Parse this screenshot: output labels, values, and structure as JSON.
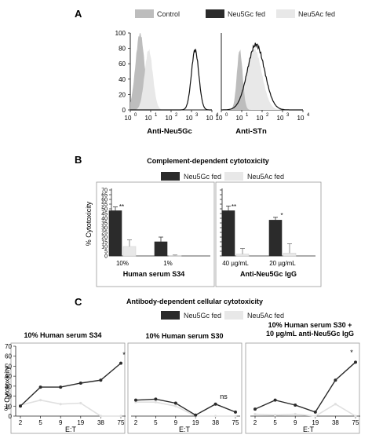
{
  "colors": {
    "dark": "#2b2b2b",
    "light": "#e8e8e8",
    "grey": "#bdbdbd",
    "axis": "#222222"
  },
  "panel_a": {
    "letter": "A",
    "legend": [
      "Control",
      "Neu5Gc fed",
      "Neu5Ac fed"
    ],
    "ylabel_ticks": [
      "0",
      "20",
      "40",
      "60",
      "80",
      "100"
    ],
    "x_ticks": [
      "10",
      "10",
      "10",
      "10",
      "10"
    ],
    "x_exps": [
      "0",
      "1",
      "2",
      "3",
      "4"
    ],
    "left_xlabel": "Anti-Neu5Gc",
    "right_xlabel": "Anti-STn"
  },
  "panel_b": {
    "letter": "B",
    "title": "Complement-dependent cytotoxicity",
    "legend": [
      "Neu5Gc fed",
      "Neu5Ac fed"
    ],
    "ylabel": "% Cytotoxicity",
    "left_group_label": "Human serum S34",
    "right_group_label": "Anti-Neu5Gc IgG",
    "stars_left": "**",
    "stars_right_1": "**",
    "stars_right_2": "*"
  },
  "panel_c": {
    "letter": "C",
    "title": "Antibody-dependent cellular cytotoxicity",
    "legend": [
      "Neu5Gc fed",
      "Neu5Ac fed"
    ],
    "ylabel": "% Cytotoxicity",
    "xlabel": "E:T",
    "sub1_title": "10% Human serum S34",
    "sub2_title": "10% Human serum S30",
    "sub3_title_1": "10% Human serum S30 +",
    "sub3_title_2": "10 µg/mL anti-Neu5Gc IgG",
    "star1": "*",
    "ns2": "ns",
    "star3": "*"
  },
  "chart_data": [
    {
      "type": "area",
      "panel": "A-left",
      "xlabel": "Anti-Neu5Gc",
      "x_scale": "log",
      "xlim": [
        1,
        10000
      ],
      "ylim": [
        0,
        100
      ],
      "series": [
        {
          "name": "Control",
          "peak_x": 3,
          "peak_y": 100
        },
        {
          "name": "Neu5Ac fed",
          "peak_x": 8,
          "peak_y": 78
        },
        {
          "name": "Neu5Gc fed",
          "peak_x": 1500,
          "peak_y": 78
        }
      ]
    },
    {
      "type": "area",
      "panel": "A-right",
      "xlabel": "Anti-STn",
      "x_scale": "log",
      "xlim": [
        1,
        10000
      ],
      "ylim": [
        0,
        100
      ],
      "series": [
        {
          "name": "Control",
          "peak_x": 8,
          "peak_y": 78
        },
        {
          "name": "Neu5Ac fed",
          "peak_x": 40,
          "peak_y": 80
        },
        {
          "name": "Neu5Gc fed",
          "peak_x": 50,
          "peak_y": 85
        }
      ]
    },
    {
      "type": "bar",
      "panel": "B",
      "title": "Complement-dependent cytotoxicity",
      "ylabel": "% Cytotoxicity",
      "ylim": [
        0,
        70
      ],
      "yticks": [
        0,
        5,
        10,
        15,
        20,
        25,
        30,
        35,
        40,
        45,
        50,
        55,
        60,
        65,
        70
      ],
      "groups": [
        {
          "label": "Human serum S34",
          "categories": [
            "10%",
            "1%"
          ],
          "series": [
            {
              "name": "Neu5Gc fed",
              "values": [
                48,
                15
              ],
              "errors": [
                4,
                5
              ]
            },
            {
              "name": "Neu5Ac fed",
              "values": [
                10,
                0.5
              ],
              "errors": [
                7,
                0.5
              ]
            }
          ]
        },
        {
          "label": "Anti-Neu5Gc IgG",
          "categories": [
            "40 µg/mL",
            "20 µg/mL"
          ],
          "series": [
            {
              "name": "Neu5Gc fed",
              "values": [
                48,
                38
              ],
              "errors": [
                5,
                3
              ]
            },
            {
              "name": "Neu5Ac fed",
              "values": [
                2,
                3
              ],
              "errors": [
                6,
                10
              ]
            }
          ]
        }
      ]
    },
    {
      "type": "line",
      "panel": "C1",
      "title": "10% Human serum S34",
      "xlabel": "E:T",
      "ylabel": "% Cytotoxicity",
      "x": [
        2,
        5,
        9,
        19,
        38,
        75
      ],
      "ylim": [
        0,
        70
      ],
      "yticks": [
        0,
        10,
        20,
        30,
        40,
        50,
        60,
        70
      ],
      "series": [
        {
          "name": "Neu5Gc fed",
          "values": [
            10,
            29,
            29,
            33,
            36,
            53
          ]
        },
        {
          "name": "Neu5Ac fed",
          "values": [
            11,
            16,
            12,
            13,
            0,
            0
          ]
        }
      ]
    },
    {
      "type": "line",
      "panel": "C2",
      "title": "10% Human serum S30",
      "xlabel": "E:T",
      "x": [
        2,
        5,
        9,
        19,
        38,
        75
      ],
      "ylim": [
        0,
        70
      ],
      "series": [
        {
          "name": "Neu5Gc fed",
          "values": [
            16,
            17,
            13,
            1,
            12,
            4
          ]
        },
        {
          "name": "Neu5Ac fed",
          "values": [
            14,
            14,
            10,
            0,
            0,
            0
          ]
        }
      ]
    },
    {
      "type": "line",
      "panel": "C3",
      "title": "10% Human serum S30 + 10 µg/mL anti-Neu5Gc IgG",
      "xlabel": "E:T",
      "x": [
        2,
        5,
        9,
        19,
        38,
        75
      ],
      "ylim": [
        0,
        70
      ],
      "series": [
        {
          "name": "Neu5Gc fed",
          "values": [
            7,
            16,
            11,
            4,
            36,
            54
          ]
        },
        {
          "name": "Neu5Ac fed",
          "values": [
            2,
            1,
            2,
            0,
            12,
            0
          ]
        }
      ]
    }
  ]
}
